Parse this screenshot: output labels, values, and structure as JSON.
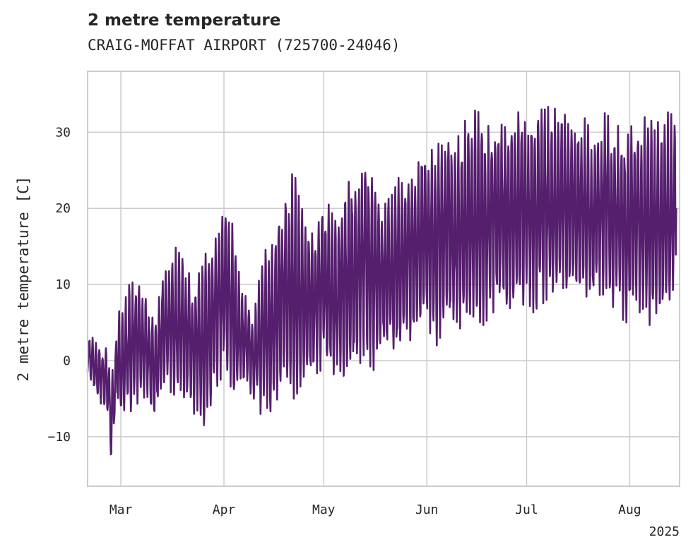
{
  "chart_data": {
    "type": "line",
    "title": "2 metre temperature",
    "subtitle": "CRAIG-MOFFAT AIRPORT (725700-24046)",
    "xlabel": "",
    "ylabel": "2 metre temperature [C]",
    "x_range": [
      "2025-02-19",
      "2025-08-16"
    ],
    "ylim": [
      -16.5,
      38
    ],
    "x_ticks": [
      {
        "date": "2025-03-01",
        "label": "Mar"
      },
      {
        "date": "2025-04-01",
        "label": "Apr"
      },
      {
        "date": "2025-05-01",
        "label": "May"
      },
      {
        "date": "2025-06-01",
        "label": "Jun"
      },
      {
        "date": "2025-07-01",
        "label": "Jul"
      },
      {
        "date": "2025-08-01",
        "label": "Aug"
      }
    ],
    "x_year_label": "2025",
    "y_ticks": [
      -10,
      0,
      10,
      20,
      30
    ],
    "grid": true,
    "series": [
      {
        "color": "#561f6e",
        "points": [
          [
            "2025-02-19",
            -2,
            4
          ],
          [
            "2025-02-22",
            -5,
            2
          ],
          [
            "2025-02-25",
            -7,
            2
          ],
          [
            "2025-02-26",
            -14,
            -3
          ],
          [
            "2025-02-28",
            -6,
            6
          ],
          [
            "2025-03-02",
            -8,
            8
          ],
          [
            "2025-03-05",
            -6,
            13
          ],
          [
            "2025-03-08",
            -5,
            9
          ],
          [
            "2025-03-11",
            -8,
            5
          ],
          [
            "2025-03-14",
            -4,
            13
          ],
          [
            "2025-03-17",
            -6,
            15
          ],
          [
            "2025-03-20",
            -5,
            14
          ],
          [
            "2025-03-23",
            -7,
            9
          ],
          [
            "2025-03-26",
            -10,
            14
          ],
          [
            "2025-03-29",
            -4,
            16
          ],
          [
            "2025-04-01",
            -2,
            23
          ],
          [
            "2025-04-04",
            -6,
            17
          ],
          [
            "2025-04-07",
            -3,
            9
          ],
          [
            "2025-04-10",
            -5,
            6
          ],
          [
            "2025-04-13",
            -8,
            15
          ],
          [
            "2025-04-16",
            -6,
            18
          ],
          [
            "2025-04-19",
            -4,
            22
          ],
          [
            "2025-04-22",
            -5,
            25
          ],
          [
            "2025-04-25",
            -3,
            19
          ],
          [
            "2025-04-28",
            -2,
            17
          ],
          [
            "2025-05-01",
            -1,
            22
          ],
          [
            "2025-05-04",
            -3,
            19
          ],
          [
            "2025-05-07",
            -2,
            23
          ],
          [
            "2025-05-10",
            -1,
            24
          ],
          [
            "2025-05-13",
            0,
            27
          ],
          [
            "2025-05-16",
            -2,
            26
          ],
          [
            "2025-05-19",
            1,
            21
          ],
          [
            "2025-05-22",
            0,
            24
          ],
          [
            "2025-05-25",
            2,
            24
          ],
          [
            "2025-05-28",
            3,
            26
          ],
          [
            "2025-06-01",
            4,
            30
          ],
          [
            "2025-06-04",
            2,
            28
          ],
          [
            "2025-06-07",
            5,
            31
          ],
          [
            "2025-06-10",
            3,
            29
          ],
          [
            "2025-06-13",
            6,
            32
          ],
          [
            "2025-06-16",
            4,
            33
          ],
          [
            "2025-06-19",
            5,
            31
          ],
          [
            "2025-06-22",
            7,
            30
          ],
          [
            "2025-06-25",
            6,
            32
          ],
          [
            "2025-06-28",
            8,
            33
          ],
          [
            "2025-07-01",
            7,
            31
          ],
          [
            "2025-07-04",
            6,
            33
          ],
          [
            "2025-07-07",
            8,
            33
          ],
          [
            "2025-07-10",
            7,
            35
          ],
          [
            "2025-07-13",
            9,
            33
          ],
          [
            "2025-07-16",
            8,
            31
          ],
          [
            "2025-07-19",
            7,
            32
          ],
          [
            "2025-07-22",
            8,
            30
          ],
          [
            "2025-07-25",
            9,
            33
          ],
          [
            "2025-07-28",
            6,
            31
          ],
          [
            "2025-07-31",
            5,
            30
          ],
          [
            "2025-08-03",
            7,
            33
          ],
          [
            "2025-08-06",
            5,
            32
          ],
          [
            "2025-08-09",
            4,
            31
          ],
          [
            "2025-08-12",
            6,
            33
          ],
          [
            "2025-08-15",
            8,
            32
          ]
        ]
      }
    ]
  }
}
